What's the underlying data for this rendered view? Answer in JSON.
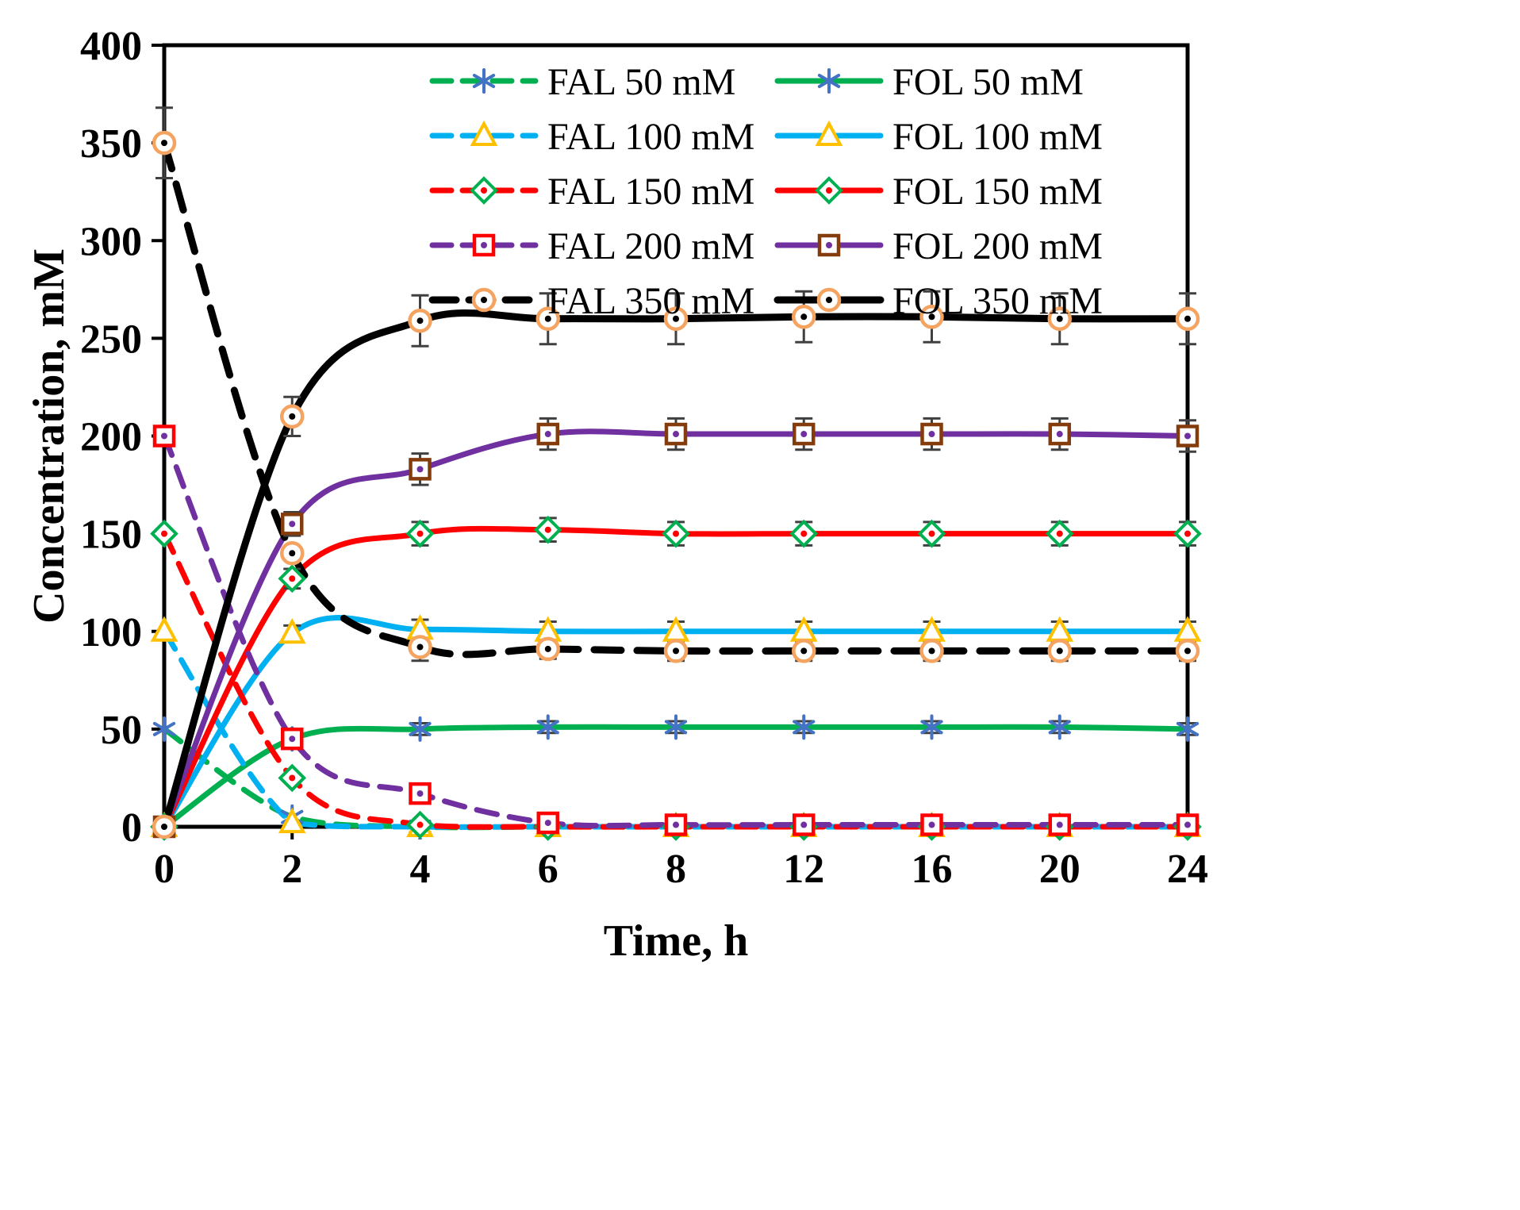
{
  "figure": {
    "kind": "scientific-line-chart",
    "background": "#ffffff"
  },
  "chart_data": {
    "type": "line",
    "title": "",
    "xlabel": "Time, h",
    "ylabel": "Concentration, mM",
    "x_categories": [
      "0",
      "2",
      "4",
      "6",
      "8",
      "12",
      "16",
      "20",
      "24"
    ],
    "x_values": [
      0,
      2,
      4,
      6,
      8,
      12,
      16,
      20,
      24
    ],
    "x_spacing": "even-categorical",
    "ylim": [
      0,
      400
    ],
    "y_tick_step": 50,
    "grid": false,
    "legend_position": "top-inside-two-columns",
    "axis_color": "#000000",
    "error_bar_color": "#404040",
    "series": [
      {
        "name": "FAL 50 mM",
        "style": "dashed",
        "color": "#00B050",
        "marker": "asterisk",
        "marker_color": "#4472C4",
        "values": [
          50,
          5,
          0,
          0,
          0,
          0,
          0,
          0,
          0
        ],
        "errors": [
          0,
          0,
          0,
          0,
          0,
          0,
          0,
          0,
          0
        ]
      },
      {
        "name": "FOL 50 mM",
        "style": "solid",
        "color": "#00B050",
        "marker": "asterisk",
        "marker_color": "#4472C4",
        "values": [
          0,
          45,
          50,
          51,
          51,
          51,
          51,
          51,
          50
        ],
        "errors": [
          0,
          0,
          3,
          3,
          3,
          3,
          3,
          3,
          3
        ]
      },
      {
        "name": "FAL 100 mM",
        "style": "dashed",
        "color": "#00B0F0",
        "marker": "triangle",
        "marker_color": "#FFC000",
        "values": [
          100,
          2,
          0,
          0,
          0,
          0,
          0,
          0,
          0
        ],
        "errors": [
          0,
          0,
          0,
          0,
          0,
          0,
          0,
          0,
          0
        ]
      },
      {
        "name": "FOL 100 mM",
        "style": "solid",
        "color": "#00B0F0",
        "marker": "triangle",
        "marker_color": "#FFC000",
        "values": [
          0,
          99,
          101,
          100,
          100,
          100,
          100,
          100,
          100
        ],
        "errors": [
          0,
          4,
          5,
          5,
          5,
          5,
          5,
          5,
          5
        ]
      },
      {
        "name": "FAL 150 mM",
        "style": "dashed",
        "color": "#FF0000",
        "marker": "diamond",
        "marker_color": "#00B050",
        "values": [
          150,
          25,
          1,
          0,
          0,
          0,
          0,
          0,
          0
        ],
        "errors": [
          0,
          0,
          0,
          0,
          0,
          0,
          0,
          0,
          0
        ]
      },
      {
        "name": "FOL 150 mM",
        "style": "solid",
        "color": "#FF0000",
        "marker": "diamond",
        "marker_color": "#00B050",
        "values": [
          0,
          127,
          150,
          152,
          150,
          150,
          150,
          150,
          150
        ],
        "errors": [
          0,
          5,
          6,
          6,
          6,
          6,
          6,
          6,
          6
        ]
      },
      {
        "name": "FAL 200 mM",
        "style": "dashed",
        "color": "#7030A0",
        "marker": "square",
        "marker_color": "#FF0000",
        "values": [
          200,
          45,
          17,
          2,
          1,
          1,
          1,
          1,
          1
        ],
        "errors": [
          0,
          0,
          0,
          0,
          0,
          0,
          0,
          0,
          0
        ]
      },
      {
        "name": "FOL 200 mM",
        "style": "solid",
        "color": "#7030A0",
        "marker": "square",
        "marker_color": "#843C0C",
        "values": [
          0,
          155,
          183,
          201,
          201,
          201,
          201,
          201,
          200
        ],
        "errors": [
          0,
          6,
          8,
          8,
          8,
          8,
          8,
          8,
          8
        ]
      },
      {
        "name": "FAL 350 mM",
        "style": "dashed",
        "color": "#000000",
        "marker": "circle",
        "marker_color": "#F4A460",
        "values": [
          350,
          140,
          92,
          91,
          90,
          90,
          90,
          90,
          90
        ],
        "errors": [
          18,
          0,
          7,
          5,
          5,
          5,
          5,
          5,
          5
        ]
      },
      {
        "name": "FOL 350 mM",
        "style": "solid",
        "color": "#000000",
        "marker": "circle",
        "marker_color": "#F4A460",
        "values": [
          0,
          210,
          259,
          260,
          260,
          261,
          261,
          260,
          260
        ],
        "errors": [
          0,
          10,
          13,
          13,
          13,
          13,
          13,
          13,
          13
        ]
      }
    ]
  }
}
